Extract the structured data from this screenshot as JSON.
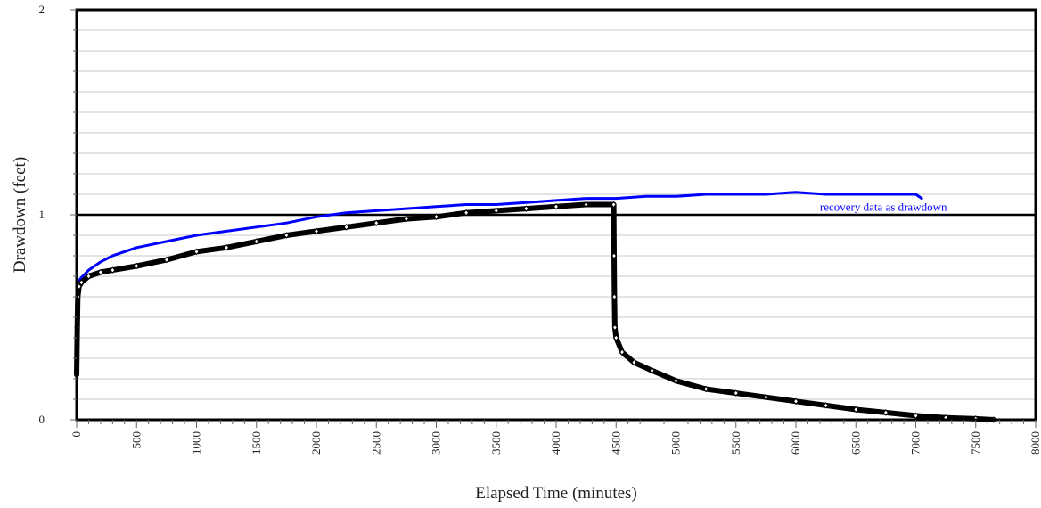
{
  "chart_data": {
    "type": "line",
    "title": "",
    "xlabel": "Elapsed Time (minutes)",
    "ylabel": "Drawdown (feet)",
    "xlim": [
      0,
      8000
    ],
    "ylim": [
      0,
      2
    ],
    "x_ticks": [
      0,
      500,
      1000,
      1500,
      2000,
      2500,
      3000,
      3500,
      4000,
      4500,
      5000,
      5500,
      6000,
      6500,
      7000,
      7500,
      8000
    ],
    "y_ticks": [
      0,
      1,
      2
    ],
    "x_minor_step": 100,
    "y_minor_step": 0.1,
    "grid": "horizontal minor",
    "reference_line": {
      "y": 1.0,
      "color": "#000000"
    },
    "annotations": [
      {
        "text": "recovery data as drawdown",
        "x": 6200,
        "y": 1.02,
        "color": "#0000ff"
      }
    ],
    "series": [
      {
        "color": "#000000",
        "marker": "diamond",
        "x": [
          0,
          5,
          10,
          20,
          40,
          100,
          200,
          300,
          500,
          750,
          1000,
          1250,
          1500,
          1750,
          2000,
          2250,
          2500,
          2750,
          3000,
          3250,
          3500,
          3750,
          4000,
          4250,
          4480,
          4483,
          4486,
          4490,
          4500,
          4550,
          4650,
          4800,
          5000,
          5250,
          5500,
          5750,
          6000,
          6250,
          6500,
          6750,
          7000,
          7250,
          7500,
          7650
        ],
        "y": [
          0.22,
          0.45,
          0.6,
          0.65,
          0.67,
          0.7,
          0.72,
          0.73,
          0.75,
          0.78,
          0.82,
          0.84,
          0.87,
          0.9,
          0.92,
          0.94,
          0.96,
          0.98,
          0.99,
          1.01,
          1.02,
          1.03,
          1.04,
          1.05,
          1.05,
          0.8,
          0.6,
          0.45,
          0.4,
          0.33,
          0.28,
          0.24,
          0.19,
          0.15,
          0.13,
          0.11,
          0.09,
          0.07,
          0.05,
          0.035,
          0.02,
          0.01,
          0.005,
          0.0
        ]
      },
      {
        "color": "#0000ff",
        "marker": "none",
        "x": [
          0,
          5,
          10,
          20,
          50,
          100,
          200,
          300,
          500,
          750,
          1000,
          1250,
          1500,
          1750,
          2000,
          2250,
          2500,
          2750,
          3000,
          3250,
          3500,
          3750,
          4000,
          4250,
          4500,
          4750,
          5000,
          5250,
          5500,
          5750,
          6000,
          6250,
          6500,
          6750,
          7000,
          7050
        ],
        "y": [
          0.22,
          0.55,
          0.65,
          0.68,
          0.7,
          0.73,
          0.77,
          0.8,
          0.84,
          0.87,
          0.9,
          0.92,
          0.94,
          0.96,
          0.99,
          1.01,
          1.02,
          1.03,
          1.04,
          1.05,
          1.05,
          1.06,
          1.07,
          1.08,
          1.08,
          1.09,
          1.09,
          1.1,
          1.1,
          1.1,
          1.11,
          1.1,
          1.1,
          1.1,
          1.1,
          1.08
        ]
      }
    ]
  }
}
